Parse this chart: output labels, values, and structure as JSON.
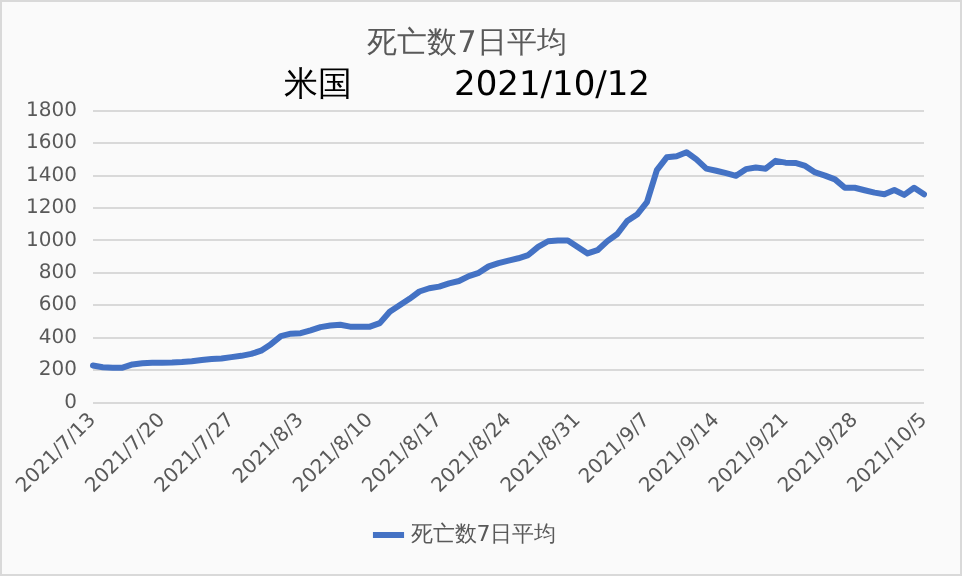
{
  "chart_data": {
    "type": "line",
    "title": "死亡数7日平均",
    "subtitle": "米国　　　2021/10/12",
    "categories": [
      "2021/7/13",
      null,
      null,
      null,
      null,
      null,
      null,
      "2021/7/20",
      null,
      null,
      null,
      null,
      null,
      null,
      "2021/7/27",
      null,
      null,
      null,
      null,
      null,
      null,
      "2021/8/3",
      null,
      null,
      null,
      null,
      null,
      null,
      "2021/8/10",
      null,
      null,
      null,
      null,
      null,
      null,
      "2021/8/17",
      null,
      null,
      null,
      null,
      null,
      null,
      "2021/8/24",
      null,
      null,
      null,
      null,
      null,
      null,
      "2021/8/31",
      null,
      null,
      null,
      null,
      null,
      null,
      "2021/9/7",
      null,
      null,
      null,
      null,
      null,
      null,
      "2021/9/14",
      null,
      null,
      null,
      null,
      null,
      null,
      "2021/9/21",
      null,
      null,
      null,
      null,
      null,
      null,
      "2021/9/28",
      null,
      null,
      null,
      null,
      null,
      null,
      "2021/10/5"
    ],
    "series": [
      {
        "name": "死亡数7日平均",
        "color": "#4472c4",
        "values": [
          228,
          218,
          215,
          215,
          235,
          242,
          245,
          246,
          247,
          250,
          255,
          262,
          268,
          272,
          280,
          288,
          300,
          320,
          360,
          410,
          425,
          428,
          445,
          465,
          475,
          480,
          468,
          468,
          468,
          490,
          560,
          600,
          640,
          685,
          705,
          715,
          735,
          750,
          780,
          800,
          840,
          860,
          875,
          890,
          910,
          960,
          995,
          1000,
          1000,
          960,
          920,
          940,
          996,
          1040,
          1120,
          1160,
          1237,
          1434,
          1513,
          1520,
          1544,
          1500,
          1443,
          1430,
          1415,
          1399,
          1440,
          1450,
          1443,
          1491,
          1480,
          1478,
          1460,
          1420,
          1400,
          1377,
          1325,
          1325,
          1310,
          1295,
          1285,
          1311,
          1281,
          1325,
          1285
        ]
      }
    ],
    "ylim": [
      0,
      1800
    ],
    "yticks": [
      0,
      200,
      400,
      600,
      800,
      1000,
      1200,
      1400,
      1600,
      1800
    ],
    "grid": "y",
    "legend": "bottom",
    "marker": "none",
    "line_style": "solid"
  }
}
